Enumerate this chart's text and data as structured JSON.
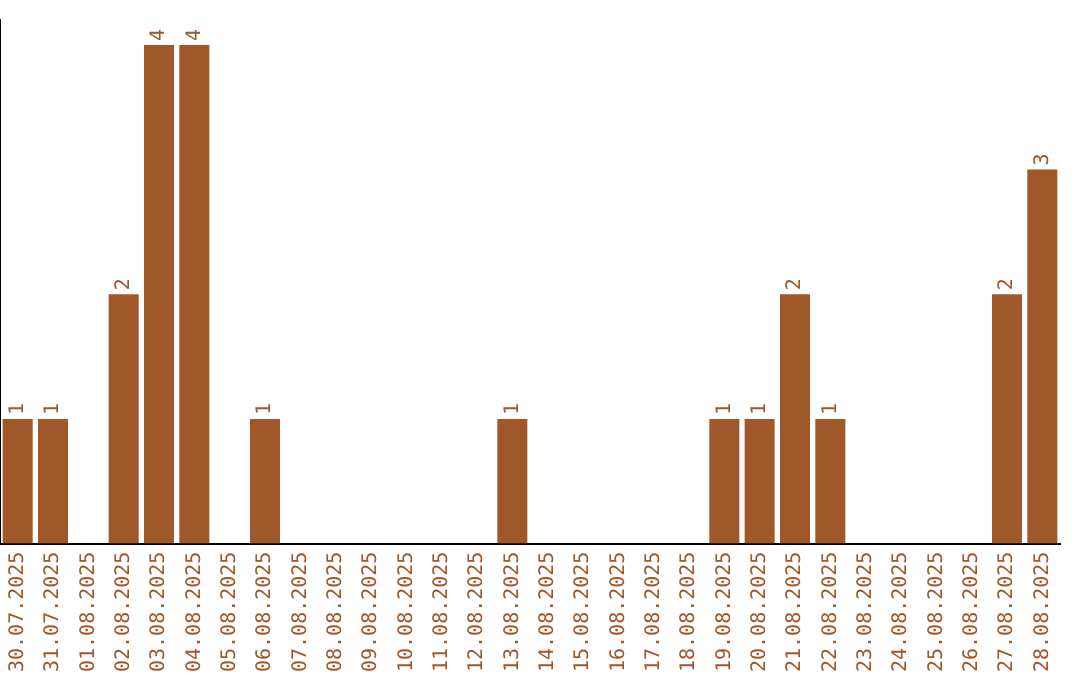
{
  "chart_data": {
    "type": "bar",
    "categories": [
      "30.07.2025",
      "31.07.2025",
      "01.08.2025",
      "02.08.2025",
      "03.08.2025",
      "04.08.2025",
      "05.08.2025",
      "06.08.2025",
      "07.08.2025",
      "08.08.2025",
      "09.08.2025",
      "10.08.2025",
      "11.08.2025",
      "12.08.2025",
      "13.08.2025",
      "14.08.2025",
      "15.08.2025",
      "16.08.2025",
      "17.08.2025",
      "18.08.2025",
      "19.08.2025",
      "20.08.2025",
      "21.08.2025",
      "22.08.2025",
      "23.08.2025",
      "24.08.2025",
      "25.08.2025",
      "26.08.2025",
      "27.08.2025",
      "28.08.2025"
    ],
    "values": [
      1,
      1,
      0,
      2,
      4,
      4,
      0,
      1,
      0,
      0,
      0,
      0,
      0,
      0,
      1,
      0,
      0,
      0,
      0,
      0,
      1,
      1,
      2,
      1,
      0,
      0,
      0,
      0,
      2,
      3
    ],
    "value_labels": [
      "1",
      "1",
      null,
      "2",
      "4",
      "4",
      null,
      "1",
      null,
      null,
      null,
      null,
      null,
      null,
      "1",
      null,
      null,
      null,
      null,
      null,
      "1",
      "1",
      "2",
      "1",
      null,
      null,
      null,
      null,
      "2",
      "3"
    ],
    "color": "#a0572a",
    "ylim": [
      0,
      4.2
    ],
    "tick_labels": "x",
    "grid": false,
    "legend": false
  }
}
